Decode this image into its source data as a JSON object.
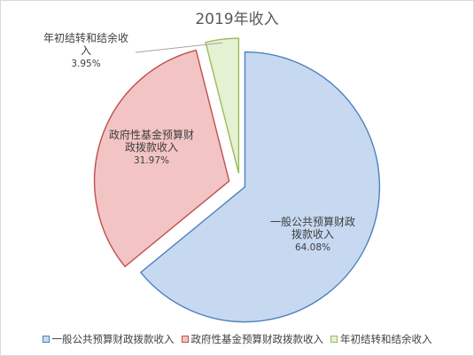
{
  "chart_data": {
    "type": "pie",
    "title": "2019年收入",
    "legend_position": "bottom",
    "slices": [
      {
        "name": "一般公共预算财政拨款收入",
        "value": 64.08,
        "label_lines": [
          "一般公共预算财政",
          "拨款收入"
        ],
        "value_label": "64.08%",
        "fill": "#c6d9f1",
        "stroke": "#4f81bd"
      },
      {
        "name": "政府性基金预算财政拨款收入",
        "value": 31.97,
        "label_lines": [
          "政府性基金预算财",
          "政拨款收入"
        ],
        "value_label": "31.97%",
        "fill": "#f2c4c4",
        "stroke": "#c0504d"
      },
      {
        "name": "年初结转和结余收入",
        "value": 3.95,
        "label_lines": [
          "年初结转和结余收",
          "入"
        ],
        "value_label": "3.95%",
        "fill": "#e4f1d3",
        "stroke": "#9bbb59"
      }
    ]
  }
}
